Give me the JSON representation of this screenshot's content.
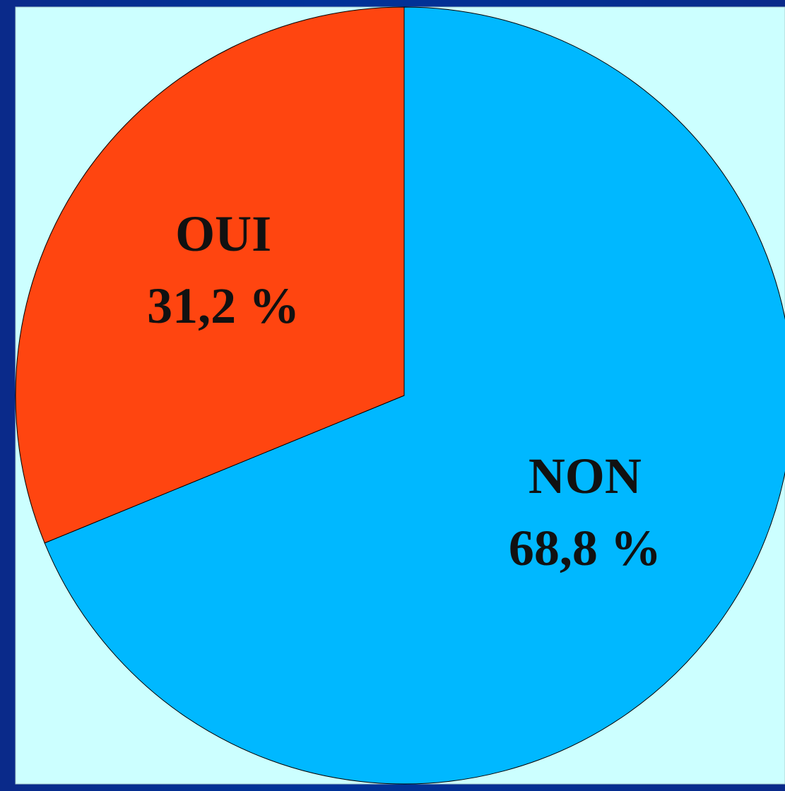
{
  "chart_data": {
    "type": "pie",
    "categories": [
      "NON",
      "OUI"
    ],
    "values": [
      68.8,
      31.2
    ],
    "value_labels": [
      "68,8 %",
      "31,2 %"
    ],
    "colors": [
      "#00b8ff",
      "#ff4510"
    ]
  }
}
